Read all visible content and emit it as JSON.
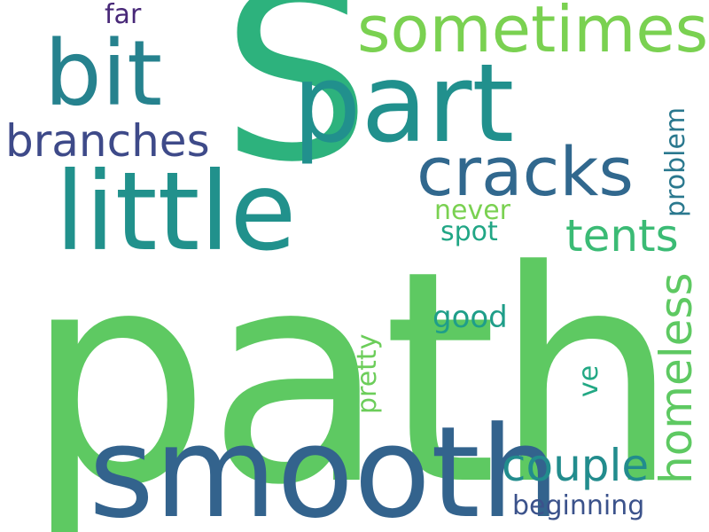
{
  "words": [
    {
      "id": "path",
      "text": "path",
      "color": "#5ec962"
    },
    {
      "id": "s",
      "text": "S",
      "color": "#2db27d"
    },
    {
      "id": "smooth",
      "text": "smooth",
      "color": "#33638d"
    },
    {
      "id": "part",
      "text": "part",
      "color": "#21908d"
    },
    {
      "id": "little",
      "text": "little",
      "color": "#21918c"
    },
    {
      "id": "bit",
      "text": "bit",
      "color": "#26828e"
    },
    {
      "id": "sometimes",
      "text": "sometimes",
      "color": "#7ad151"
    },
    {
      "id": "cracks",
      "text": "cracks",
      "color": "#31688e"
    },
    {
      "id": "branches",
      "text": "branches",
      "color": "#3e4a89"
    },
    {
      "id": "tents",
      "text": "tents",
      "color": "#3bbb75"
    },
    {
      "id": "homeless",
      "text": "homeless",
      "color": "#5ec962"
    },
    {
      "id": "couple",
      "text": "couple",
      "color": "#228c8d"
    },
    {
      "id": "problem",
      "text": "problem",
      "color": "#2a788e"
    },
    {
      "id": "never",
      "text": "never",
      "color": "#7ad151"
    },
    {
      "id": "spot",
      "text": "spot",
      "color": "#21a685"
    },
    {
      "id": "good",
      "text": "good",
      "color": "#1f9e89"
    },
    {
      "id": "pretty",
      "text": "pretty",
      "color": "#6ccd5a"
    },
    {
      "id": "ve",
      "text": "ve",
      "color": "#22a884"
    },
    {
      "id": "far",
      "text": "far",
      "color": "#482878"
    },
    {
      "id": "beginning",
      "text": "beginning",
      "color": "#3b528b"
    }
  ]
}
